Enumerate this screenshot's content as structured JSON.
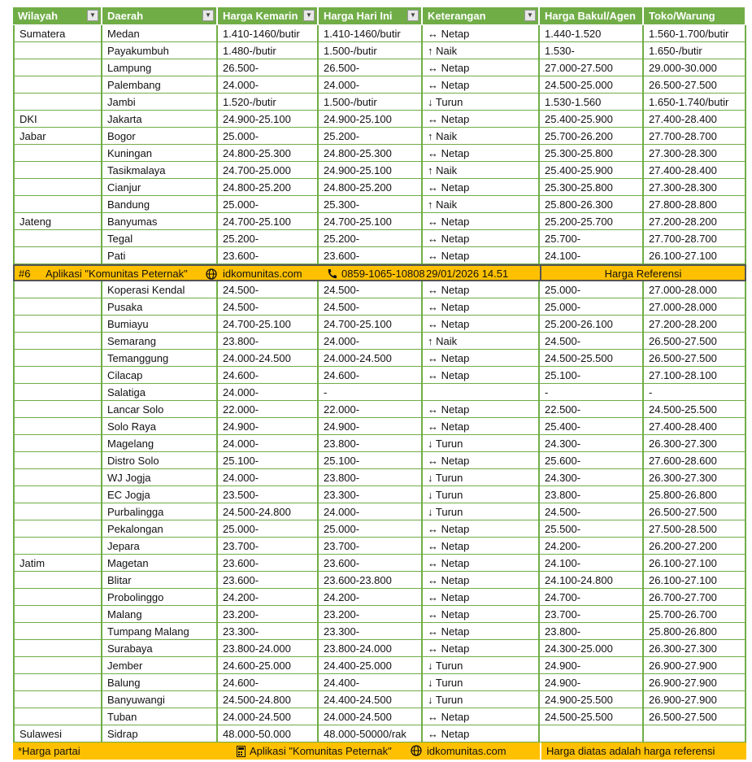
{
  "table": {
    "header": [
      "Wilayah",
      "Daerah",
      "Harga Kemarin",
      "Harga Hari Ini",
      "Keterangan",
      "Harga Bakul/Agen",
      "Toko/Warung"
    ],
    "top_rows": [
      [
        "Sumatera",
        "Medan",
        "1.410-1460/butir",
        "1.410-1460/butir",
        "↔ Netap",
        "1.440-1.520",
        "1.560-1.700/butir"
      ],
      [
        null,
        "Payakumbuh",
        "1.480-/butir",
        "1.500-/butir",
        "↑ Naik",
        "1.530-",
        "1.650-/butir"
      ],
      [
        null,
        "Lampung",
        "26.500-",
        "26.500-",
        "↔ Netap",
        "27.000-27.500",
        "29.000-30.000"
      ],
      [
        null,
        "Palembang",
        "24.000-",
        "24.000-",
        "↔ Netap",
        "24.500-25.000",
        "26.500-27.500"
      ],
      [
        null,
        "Jambi",
        "1.520-/butir",
        "1.500-/butir",
        "↓ Turun",
        "1.530-1.560",
        "1.650-1.740/butir"
      ],
      [
        "DKI",
        "Jakarta",
        "24.900-25.100",
        "24.900-25.100",
        "↔ Netap",
        "25.400-25.900",
        "27.400-28.400"
      ],
      [
        "Jabar",
        "Bogor",
        "25.000-",
        "25.200-",
        "↑ Naik",
        "25.700-26.200",
        "27.700-28.700"
      ],
      [
        null,
        "Kuningan",
        "24.800-25.300",
        "24.800-25.300",
        "↔ Netap",
        "25.300-25.800",
        "27.300-28.300"
      ],
      [
        null,
        "Tasikmalaya",
        "24.700-25.000",
        "24.900-25.100",
        "↑ Naik",
        "25.400-25.900",
        "27.400-28.400"
      ],
      [
        null,
        "Cianjur",
        "24.800-25.200",
        "24.800-25.200",
        "↔ Netap",
        "25.300-25.800",
        "27.300-28.300"
      ],
      [
        null,
        "Bandung",
        "25.000-",
        "25.300-",
        "↑ Naik",
        "25.800-26.300",
        "27.800-28.800"
      ],
      [
        "Jateng",
        "Banyumas",
        "24.700-25.100",
        "24.700-25.100",
        "↔ Netap",
        "25.200-25.700",
        "27.200-28.200"
      ],
      [
        null,
        "Tegal",
        "25.200-",
        "25.200-",
        "↔ Netap",
        "25.700-",
        "27.700-28.700"
      ],
      [
        null,
        "Pati",
        "23.600-",
        "23.600-",
        "↔ Netap",
        "24.100-",
        "26.100-27.100"
      ]
    ],
    "banner": {
      "number": "#6",
      "app": "Aplikasi \"Komunitas Peternak\"",
      "website": "idkomunitas.com",
      "phone": "0859-1065-10808",
      "timestamp": "29/01/2026 14.51",
      "label": "Harga Referensi"
    },
    "bottom_rows": [
      [
        null,
        "Koperasi Kendal",
        "24.500-",
        "24.500-",
        "↔ Netap",
        "25.000-",
        "27.000-28.000"
      ],
      [
        null,
        "Pusaka",
        "24.500-",
        "24.500-",
        "↔ Netap",
        "25.000-",
        "27.000-28.000"
      ],
      [
        null,
        "Bumiayu",
        "24.700-25.100",
        "24.700-25.100",
        "↔ Netap",
        "25.200-26.100",
        "27.200-28.200"
      ],
      [
        null,
        "Semarang",
        "23.800-",
        "24.000-",
        "↑ Naik",
        "24.500-",
        "26.500-27.500"
      ],
      [
        null,
        "Temanggung",
        "24.000-24.500",
        "24.000-24.500",
        "↔ Netap",
        "24.500-25.500",
        "26.500-27.500"
      ],
      [
        null,
        "Cilacap",
        "24.600-",
        "24.600-",
        "↔ Netap",
        "25.100-",
        "27.100-28.100"
      ],
      [
        null,
        "Salatiga",
        "24.000-",
        "-",
        null,
        "-",
        "-"
      ],
      [
        null,
        "Lancar Solo",
        "22.000-",
        "22.000-",
        "↔ Netap",
        "22.500-",
        "24.500-25.500"
      ],
      [
        null,
        "Solo Raya",
        "24.900-",
        "24.900-",
        "↔ Netap",
        "25.400-",
        "27.400-28.400"
      ],
      [
        null,
        "Magelang",
        "24.000-",
        "23.800-",
        "↓ Turun",
        "24.300-",
        "26.300-27.300"
      ],
      [
        null,
        "Distro Solo",
        "25.100-",
        "25.100-",
        "↔ Netap",
        "25.600-",
        "27.600-28.600"
      ],
      [
        null,
        "WJ Jogja",
        "24.000-",
        "23.800-",
        "↓ Turun",
        "24.300-",
        "26.300-27.300"
      ],
      [
        null,
        "EC Jogja",
        "23.500-",
        "23.300-",
        "↓ Turun",
        "23.800-",
        "25.800-26.800"
      ],
      [
        null,
        "Purbalingga",
        "24.500-24.800",
        "24.000-",
        "↓ Turun",
        "24.500-",
        "26.500-27.500"
      ],
      [
        null,
        "Pekalongan",
        "25.000-",
        "25.000-",
        "↔ Netap",
        "25.500-",
        "27.500-28.500"
      ],
      [
        null,
        "Jepara",
        "23.700-",
        "23.700-",
        "↔ Netap",
        "24.200-",
        "26.200-27.200"
      ],
      [
        "Jatim",
        "Magetan",
        "23.600-",
        "23.600-",
        "↔ Netap",
        "24.100-",
        "26.100-27.100"
      ],
      [
        null,
        "Blitar",
        "23.600-",
        "23.600-23.800",
        "↔ Netap",
        "24.100-24.800",
        "26.100-27.100"
      ],
      [
        null,
        "Probolinggo",
        "24.200-",
        "24.200-",
        "↔ Netap",
        "24.700-",
        "26.700-27.700"
      ],
      [
        null,
        "Malang",
        "23.200-",
        "23.200-",
        "↔ Netap",
        "23.700-",
        "25.700-26.700"
      ],
      [
        null,
        "Tumpang Malang",
        "23.300-",
        "23.300-",
        "↔ Netap",
        "23.800-",
        "25.800-26.800"
      ],
      [
        null,
        "Surabaya",
        "23.800-24.000",
        "23.800-24.000",
        "↔ Netap",
        "24.300-25.000",
        "26.300-27.300"
      ],
      [
        null,
        "Jember",
        "24.600-25.000",
        "24.400-25.000",
        "↓ Turun",
        "24.900-",
        "26.900-27.900"
      ],
      [
        null,
        "Balung",
        "24.600-",
        "24.400-",
        "↓ Turun",
        "24.900-",
        "26.900-27.900"
      ],
      [
        null,
        "Banyuwangi",
        "24.500-24.800",
        "24.400-24.500",
        "↓ Turun",
        "24.900-25.500",
        "26.900-27.900"
      ],
      [
        null,
        "Tuban",
        "24.000-24.500",
        "24.000-24.500",
        "↔ Netap",
        "24.500-25.500",
        "26.500-27.500"
      ],
      [
        "Sulawesi",
        "Sidrap",
        "48.000-50.000",
        "48.000-50000/rak",
        "↔ Netap",
        null,
        null
      ]
    ],
    "footer": {
      "note": "*Harga partai",
      "app": "Aplikasi \"Komunitas Peternak\"",
      "website": "idkomunitas.com",
      "disclaimer": "Harga diatas adalah harga referensi"
    }
  }
}
